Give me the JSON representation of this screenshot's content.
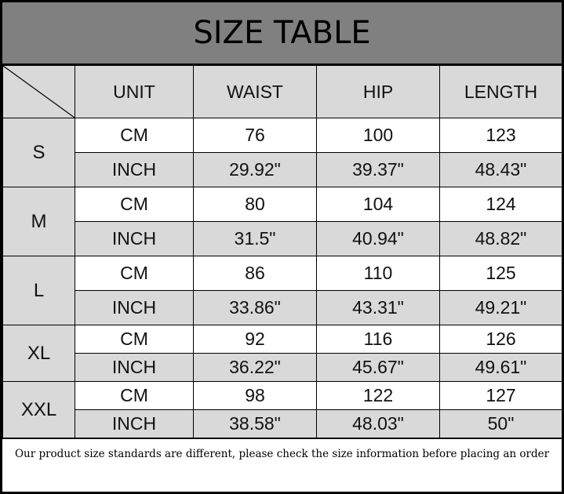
{
  "title": "SIZE TABLE",
  "headers": [
    "UNIT",
    "WAIST",
    "HIP",
    "LENGTH"
  ],
  "sizes": [
    {
      "size": "S",
      "cm": {
        "unit": "CM",
        "waist": "76",
        "hip": "100",
        "length": "123"
      },
      "inch": {
        "unit": "INCH",
        "waist": "29.92\"",
        "hip": "39.37\"",
        "length": "48.43\""
      }
    },
    {
      "size": "M",
      "cm": {
        "unit": "CM",
        "waist": "80",
        "hip": "104",
        "length": "124"
      },
      "inch": {
        "unit": "INCH",
        "waist": "31.5\"",
        "hip": "40.94\"",
        "length": "48.82\""
      }
    },
    {
      "size": "L",
      "cm": {
        "unit": "CM",
        "waist": "86",
        "hip": "110",
        "length": "125"
      },
      "inch": {
        "unit": "INCH",
        "waist": "33.86\"",
        "hip": "43.31\"",
        "length": "49.21\""
      }
    },
    {
      "size": "XL",
      "cm": {
        "unit": "CM",
        "waist": "92",
        "hip": "116",
        "length": "126"
      },
      "inch": {
        "unit": "INCH",
        "waist": "36.22\"",
        "hip": "45.67\"",
        "length": "49.61\""
      }
    },
    {
      "size": "XXL",
      "cm": {
        "unit": "CM",
        "waist": "98",
        "hip": "122",
        "length": "127"
      },
      "inch": {
        "unit": "INCH",
        "waist": "38.58\"",
        "hip": "48.03\"",
        "length": "50\""
      }
    }
  ],
  "note": "Our product size standards are different, please check the size information before placing an order",
  "colors": {
    "title_band": "#808080",
    "shaded_cell": "#d9d9d9",
    "border": "#000000"
  }
}
